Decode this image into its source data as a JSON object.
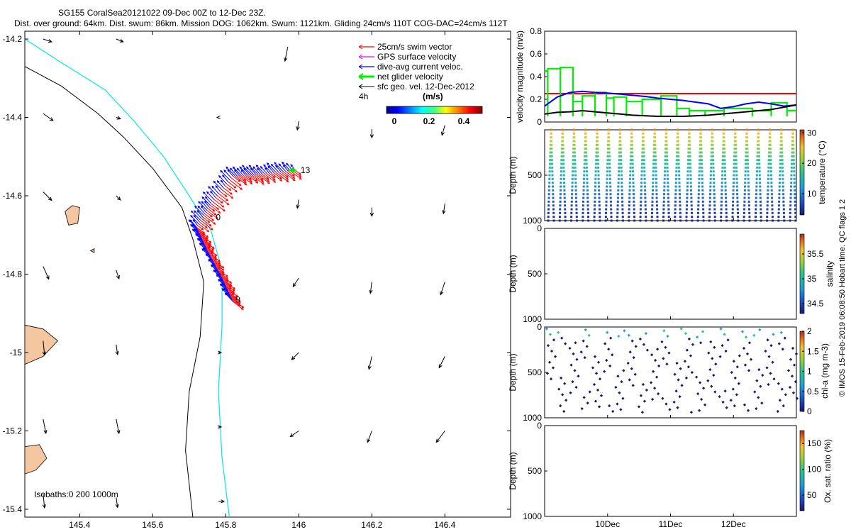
{
  "header": {
    "line1": "SG155 CoralSea20121022 09-Dec 00Z to 12-Dec 23Z.",
    "line2": "Dist. over ground: 64km. Dist. swum: 86km. Mission DOG: 1062km. Swum: 1121km. Gliding 24cm/s 110T COG-DAC=24cm/s 112T"
  },
  "colors": {
    "swim": "#ff0000",
    "gps": "#ff00ff",
    "dac": "#0000ff",
    "net": "#00ee00",
    "geo": "#000000",
    "coast_fill": "#f5c7a0",
    "isobath_200": "#000000",
    "isobath_1000": "#00e5ee"
  },
  "chart_data": [
    {
      "type": "scatter",
      "id": "map",
      "xlim": [
        145.25,
        146.58
      ],
      "ylim": [
        -15.42,
        -14.18
      ],
      "xticks": [
        145.4,
        145.6,
        145.8,
        146,
        146.2,
        146.4
      ],
      "xtick_labels": [
        "145.4",
        "145.6",
        "145.8",
        "146",
        "146.2",
        "146.4"
      ],
      "yticks": [
        -14.2,
        -14.4,
        -14.6,
        -14.8,
        -15,
        -15.2,
        -15.4
      ],
      "ytick_labels": [
        "-14.2",
        "-14.4",
        "-14.6",
        "-14.8",
        "-15",
        "-15.2",
        "-15.4"
      ],
      "legend": {
        "position": "top-right",
        "entries": [
          {
            "label": "25cm/s swim vector",
            "color_key": "swim"
          },
          {
            "label": "GPS surface velocity",
            "color_key": "gps"
          },
          {
            "label": "dive-avg current veloc.",
            "color_key": "dac"
          },
          {
            "label": "net glider velocity",
            "color_key": "net"
          },
          {
            "label": "sfc geo. vel. 12-Dec-2012",
            "color_key": "geo"
          }
        ],
        "scale_label": "4h",
        "colorbar_title": "(m/s)",
        "colorbar_ticks": [
          "0",
          "0.2",
          "0.4"
        ]
      },
      "isobaths_label": "Isobaths:0   200  1000m",
      "track": [
        {
          "lon": 145.99,
          "lat": -14.535
        },
        {
          "lon": 145.9,
          "lat": -14.545
        },
        {
          "lon": 145.82,
          "lat": -14.55
        },
        {
          "lon": 145.76,
          "lat": -14.62
        },
        {
          "lon": 145.72,
          "lat": -14.68
        },
        {
          "lon": 145.75,
          "lat": -14.74
        },
        {
          "lon": 145.79,
          "lat": -14.81
        },
        {
          "lon": 145.82,
          "lat": -14.87
        }
      ],
      "track_labels": [
        {
          "text": "13",
          "lon": 146.005,
          "lat": -14.535
        },
        {
          "text": "0",
          "lon": 145.773,
          "lat": -14.655
        },
        {
          "text": "9",
          "lon": 145.827,
          "lat": -14.865
        }
      ],
      "isobath_200": [
        {
          "lon": 145.25,
          "lat": -14.27
        },
        {
          "lon": 145.35,
          "lat": -14.32
        },
        {
          "lon": 145.45,
          "lat": -14.39
        },
        {
          "lon": 145.52,
          "lat": -14.45
        },
        {
          "lon": 145.6,
          "lat": -14.53
        },
        {
          "lon": 145.68,
          "lat": -14.63
        },
        {
          "lon": 145.71,
          "lat": -14.71
        },
        {
          "lon": 145.74,
          "lat": -14.82
        },
        {
          "lon": 145.73,
          "lat": -14.96
        },
        {
          "lon": 145.7,
          "lat": -15.1
        },
        {
          "lon": 145.69,
          "lat": -15.25
        },
        {
          "lon": 145.71,
          "lat": -15.42
        }
      ],
      "isobath_1000": [
        {
          "lon": 145.25,
          "lat": -14.2
        },
        {
          "lon": 145.35,
          "lat": -14.26
        },
        {
          "lon": 145.47,
          "lat": -14.33
        },
        {
          "lon": 145.55,
          "lat": -14.41
        },
        {
          "lon": 145.63,
          "lat": -14.5
        },
        {
          "lon": 145.7,
          "lat": -14.6
        },
        {
          "lon": 145.76,
          "lat": -14.69
        },
        {
          "lon": 145.79,
          "lat": -14.79
        },
        {
          "lon": 145.79,
          "lat": -14.93
        },
        {
          "lon": 145.78,
          "lat": -15.1
        },
        {
          "lon": 145.79,
          "lat": -15.27
        },
        {
          "lon": 145.81,
          "lat": -15.42
        }
      ],
      "islands": [
        [
          {
            "lon": 145.36,
            "lat": -14.64
          },
          {
            "lon": 145.38,
            "lat": -14.625
          },
          {
            "lon": 145.4,
            "lat": -14.63
          },
          {
            "lon": 145.395,
            "lat": -14.67
          },
          {
            "lon": 145.37,
            "lat": -14.675
          }
        ],
        [
          {
            "lon": 145.25,
            "lat": -14.93
          },
          {
            "lon": 145.3,
            "lat": -14.94
          },
          {
            "lon": 145.34,
            "lat": -14.97
          },
          {
            "lon": 145.3,
            "lat": -15.01
          },
          {
            "lon": 145.25,
            "lat": -15.03
          }
        ],
        [
          {
            "lon": 145.25,
            "lat": -15.24
          },
          {
            "lon": 145.29,
            "lat": -15.235
          },
          {
            "lon": 145.31,
            "lat": -15.27
          },
          {
            "lon": 145.28,
            "lat": -15.3
          },
          {
            "lon": 145.25,
            "lat": -15.31
          }
        ],
        [
          {
            "lon": 145.43,
            "lat": -14.74
          },
          {
            "lon": 145.44,
            "lat": -14.735
          },
          {
            "lon": 145.44,
            "lat": -14.745
          }
        ]
      ],
      "geo_vectors": [
        {
          "lon": 145.3,
          "lat": -14.2,
          "u": 0.06,
          "v": -0.02
        },
        {
          "lon": 145.5,
          "lat": -14.2,
          "u": 0.05,
          "v": -0.02
        },
        {
          "lon": 145.97,
          "lat": -14.22,
          "u": -0.02,
          "v": -0.1
        },
        {
          "lon": 145.3,
          "lat": -14.39,
          "u": 0.07,
          "v": -0.05
        },
        {
          "lon": 145.5,
          "lat": -14.4,
          "u": 0.03,
          "v": -0.01
        },
        {
          "lon": 145.78,
          "lat": -14.4,
          "u": -0.01,
          "v": 0.0
        },
        {
          "lon": 146.0,
          "lat": -14.41,
          "u": -0.01,
          "v": -0.06
        },
        {
          "lon": 146.2,
          "lat": -14.43,
          "u": 0.0,
          "v": -0.06
        },
        {
          "lon": 146.4,
          "lat": -14.42,
          "u": -0.02,
          "v": -0.07
        },
        {
          "lon": 145.3,
          "lat": -14.59,
          "u": 0.06,
          "v": -0.06
        },
        {
          "lon": 145.5,
          "lat": -14.6,
          "u": 0.03,
          "v": -0.03
        },
        {
          "lon": 146.0,
          "lat": -14.61,
          "u": -0.01,
          "v": -0.06
        },
        {
          "lon": 146.2,
          "lat": -14.63,
          "u": 0.0,
          "v": -0.06
        },
        {
          "lon": 146.4,
          "lat": -14.62,
          "u": -0.01,
          "v": -0.07
        },
        {
          "lon": 145.3,
          "lat": -14.78,
          "u": 0.04,
          "v": -0.09
        },
        {
          "lon": 145.5,
          "lat": -14.79,
          "u": 0.02,
          "v": -0.06
        },
        {
          "lon": 145.78,
          "lat": -14.8,
          "u": 0.02,
          "v": 0.0
        },
        {
          "lon": 146.0,
          "lat": -14.81,
          "u": -0.04,
          "v": -0.06
        },
        {
          "lon": 146.2,
          "lat": -14.82,
          "u": -0.01,
          "v": -0.08
        },
        {
          "lon": 146.4,
          "lat": -14.82,
          "u": -0.03,
          "v": -0.09
        },
        {
          "lon": 145.3,
          "lat": -14.97,
          "u": 0.01,
          "v": -0.1
        },
        {
          "lon": 145.5,
          "lat": -14.98,
          "u": 0.01,
          "v": -0.07
        },
        {
          "lon": 145.78,
          "lat": -15.0,
          "u": 0.02,
          "v": 0.0
        },
        {
          "lon": 146.0,
          "lat": -15.0,
          "u": -0.05,
          "v": -0.05
        },
        {
          "lon": 146.2,
          "lat": -15.01,
          "u": -0.02,
          "v": -0.09
        },
        {
          "lon": 146.4,
          "lat": -15.01,
          "u": -0.04,
          "v": -0.08
        },
        {
          "lon": 145.3,
          "lat": -15.17,
          "u": 0.02,
          "v": -0.1
        },
        {
          "lon": 145.5,
          "lat": -15.17,
          "u": 0.02,
          "v": -0.1
        },
        {
          "lon": 145.78,
          "lat": -15.19,
          "u": 0.02,
          "v": 0.0
        },
        {
          "lon": 146.0,
          "lat": -15.2,
          "u": -0.06,
          "v": -0.04
        },
        {
          "lon": 146.2,
          "lat": -15.2,
          "u": -0.03,
          "v": -0.08
        },
        {
          "lon": 146.4,
          "lat": -15.2,
          "u": -0.06,
          "v": -0.08
        },
        {
          "lon": 145.3,
          "lat": -15.36,
          "u": 0.01,
          "v": -0.1
        },
        {
          "lon": 145.5,
          "lat": -15.37,
          "u": 0.01,
          "v": -0.07
        },
        {
          "lon": 145.78,
          "lat": -15.38,
          "u": 0.04,
          "v": 0.0
        }
      ]
    },
    {
      "type": "line",
      "id": "velocity",
      "ylabel": "velocity magnitude (m/s)",
      "xlim": [
        9.0,
        13.0
      ],
      "ylim": [
        0,
        0.8
      ],
      "yticks": [
        0,
        0.2,
        0.4,
        0.6,
        0.8
      ],
      "ytick_labels": [
        "0",
        "0.2",
        "0.4",
        "0.6",
        "0.8"
      ],
      "reference_line": 0.25,
      "series": [
        {
          "color_key": "net",
          "step": true,
          "x": [
            9.0,
            9.05,
            9.25,
            9.45,
            9.6,
            9.8,
            9.98,
            10.1,
            10.3,
            10.55,
            10.85,
            11.1,
            11.3,
            11.55,
            11.85,
            12.3,
            12.6,
            12.85
          ],
          "y": [
            0.45,
            0.47,
            0.48,
            0.18,
            0.23,
            0.26,
            0.21,
            0.22,
            0.18,
            0.2,
            0.23,
            0.12,
            0.1,
            0.1,
            0.12,
            0.1,
            0.17,
            0.1
          ]
        },
        {
          "color_key": "dac",
          "x": [
            9.0,
            9.2,
            9.4,
            9.6,
            9.8,
            10.0,
            10.2,
            10.4,
            10.6,
            10.8,
            11.0,
            11.2,
            11.4,
            11.6,
            11.8,
            12.0,
            12.2,
            12.4,
            12.6,
            12.8,
            13.0
          ],
          "y": [
            0.14,
            0.22,
            0.26,
            0.27,
            0.26,
            0.255,
            0.245,
            0.235,
            0.225,
            0.21,
            0.2,
            0.19,
            0.175,
            0.16,
            0.12,
            0.135,
            0.16,
            0.175,
            0.16,
            0.14,
            0.15
          ]
        },
        {
          "color_key": "geo",
          "x": [
            9.0,
            9.2,
            9.4,
            9.6,
            9.8,
            10.0,
            10.2,
            10.4,
            10.6,
            10.8,
            11.0,
            11.2,
            11.4,
            11.6,
            11.8,
            12.0,
            12.2,
            12.4,
            12.6,
            12.8,
            13.0
          ],
          "y": [
            0.07,
            0.085,
            0.09,
            0.1,
            0.09,
            0.08,
            0.07,
            0.06,
            0.055,
            0.05,
            0.05,
            0.05,
            0.055,
            0.06,
            0.07,
            0.08,
            0.09,
            0.1,
            0.11,
            0.13,
            0.15
          ]
        }
      ]
    },
    {
      "type": "scatter",
      "id": "temperature",
      "ylabel": "Depth (m)",
      "colorbar_label": "temperature (°C)",
      "cmin": 3,
      "cmax": 31,
      "colorbar_ticks": [
        10,
        20,
        30
      ],
      "ylim": [
        1000,
        0
      ],
      "yticks": [
        500,
        1000
      ],
      "ytick_labels": [
        "500",
        "1000"
      ],
      "dives": 22,
      "max_depth": 1000
    },
    {
      "type": "scatter",
      "id": "salinity",
      "ylabel": "Depth (m)",
      "colorbar_label": "salinity",
      "cmin": 34.3,
      "cmax": 35.9,
      "colorbar_ticks": [
        34.5,
        35,
        35.5
      ],
      "colorbar_tick_labels": [
        "34.5",
        "35",
        "35.5"
      ],
      "ylim": [
        1000,
        0
      ],
      "yticks": [
        0,
        500,
        1000
      ],
      "ytick_labels": [
        "0",
        "500",
        "1000"
      ]
    },
    {
      "type": "scatter",
      "id": "chla",
      "ylabel": "Depth (m)",
      "colorbar_label": "chl-a (mg m-3)",
      "cmin": 0,
      "cmax": 2,
      "colorbar_ticks": [
        0,
        0.5,
        1,
        1.5,
        2
      ],
      "colorbar_tick_labels": [
        "0",
        "0.5",
        "1",
        "1.5",
        "2"
      ],
      "ylim": [
        1000,
        0
      ],
      "yticks": [
        0,
        500,
        1000
      ],
      "ytick_labels": [
        "0",
        "500",
        "1000"
      ],
      "dives": 22,
      "max_depth": 930
    },
    {
      "type": "scatter",
      "id": "oxygen",
      "ylabel": "Depth (m)",
      "colorbar_label": "Ox. sat. ratio (%)",
      "cmin": 20,
      "cmax": 175,
      "colorbar_ticks": [
        50,
        100,
        150
      ],
      "ylim": [
        1000,
        0
      ],
      "yticks": [
        0,
        500,
        1000
      ],
      "ytick_labels": [
        "0",
        "500",
        "1000"
      ],
      "xlim": [
        9.0,
        13.0
      ],
      "xticks": [
        10,
        11,
        12
      ],
      "xtick_labels": [
        "10Dec",
        "11Dec",
        "12Dec"
      ]
    }
  ],
  "side_caption": "© IMOS 15-Feb-2019 06:08:50 Hobart time. QC flags 1  2"
}
